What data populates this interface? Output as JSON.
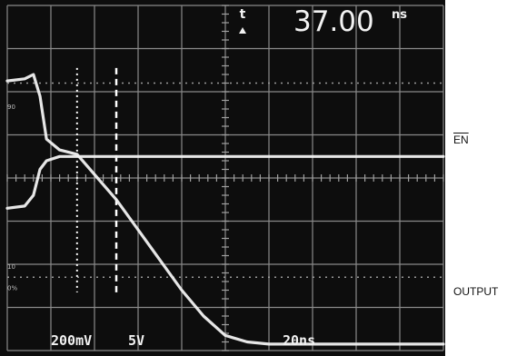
{
  "chart_data": {
    "type": "line",
    "title": "",
    "readout": {
      "symbol": "t",
      "value": "37.00",
      "unit": "ns"
    },
    "scale_labels": {
      "ch1": "200mV",
      "ch2": "5V",
      "time": "20ns"
    },
    "grid": true,
    "xlim": [
      0,
      10
    ],
    "ylim": [
      0,
      8
    ],
    "cursors_x": [
      1.6,
      2.5
    ],
    "graticule_marks": [
      "90",
      "10",
      "0%"
    ],
    "series": [
      {
        "name": "EN",
        "color": "#f2f2f2",
        "x": [
          0,
          0.4,
          0.6,
          0.75,
          0.9,
          1.2,
          2,
          4,
          10
        ],
        "y": [
          3.3,
          3.35,
          3.6,
          4.2,
          4.4,
          4.5,
          4.5,
          4.5,
          4.5
        ]
      },
      {
        "name": "OUTPUT",
        "color": "#f2f2f2",
        "x": [
          0,
          0.4,
          0.6,
          0.75,
          0.9,
          1.2,
          1.6,
          2.5,
          3,
          3.5,
          4,
          4.5,
          5,
          5.5,
          6,
          10
        ],
        "y": [
          6.25,
          6.3,
          6.4,
          5.9,
          4.9,
          4.65,
          4.55,
          3.5,
          2.8,
          2.1,
          1.4,
          0.8,
          0.35,
          0.2,
          0.15,
          0.15
        ]
      }
    ]
  },
  "labels": {
    "en": "EN",
    "output": "OUTPUT"
  }
}
